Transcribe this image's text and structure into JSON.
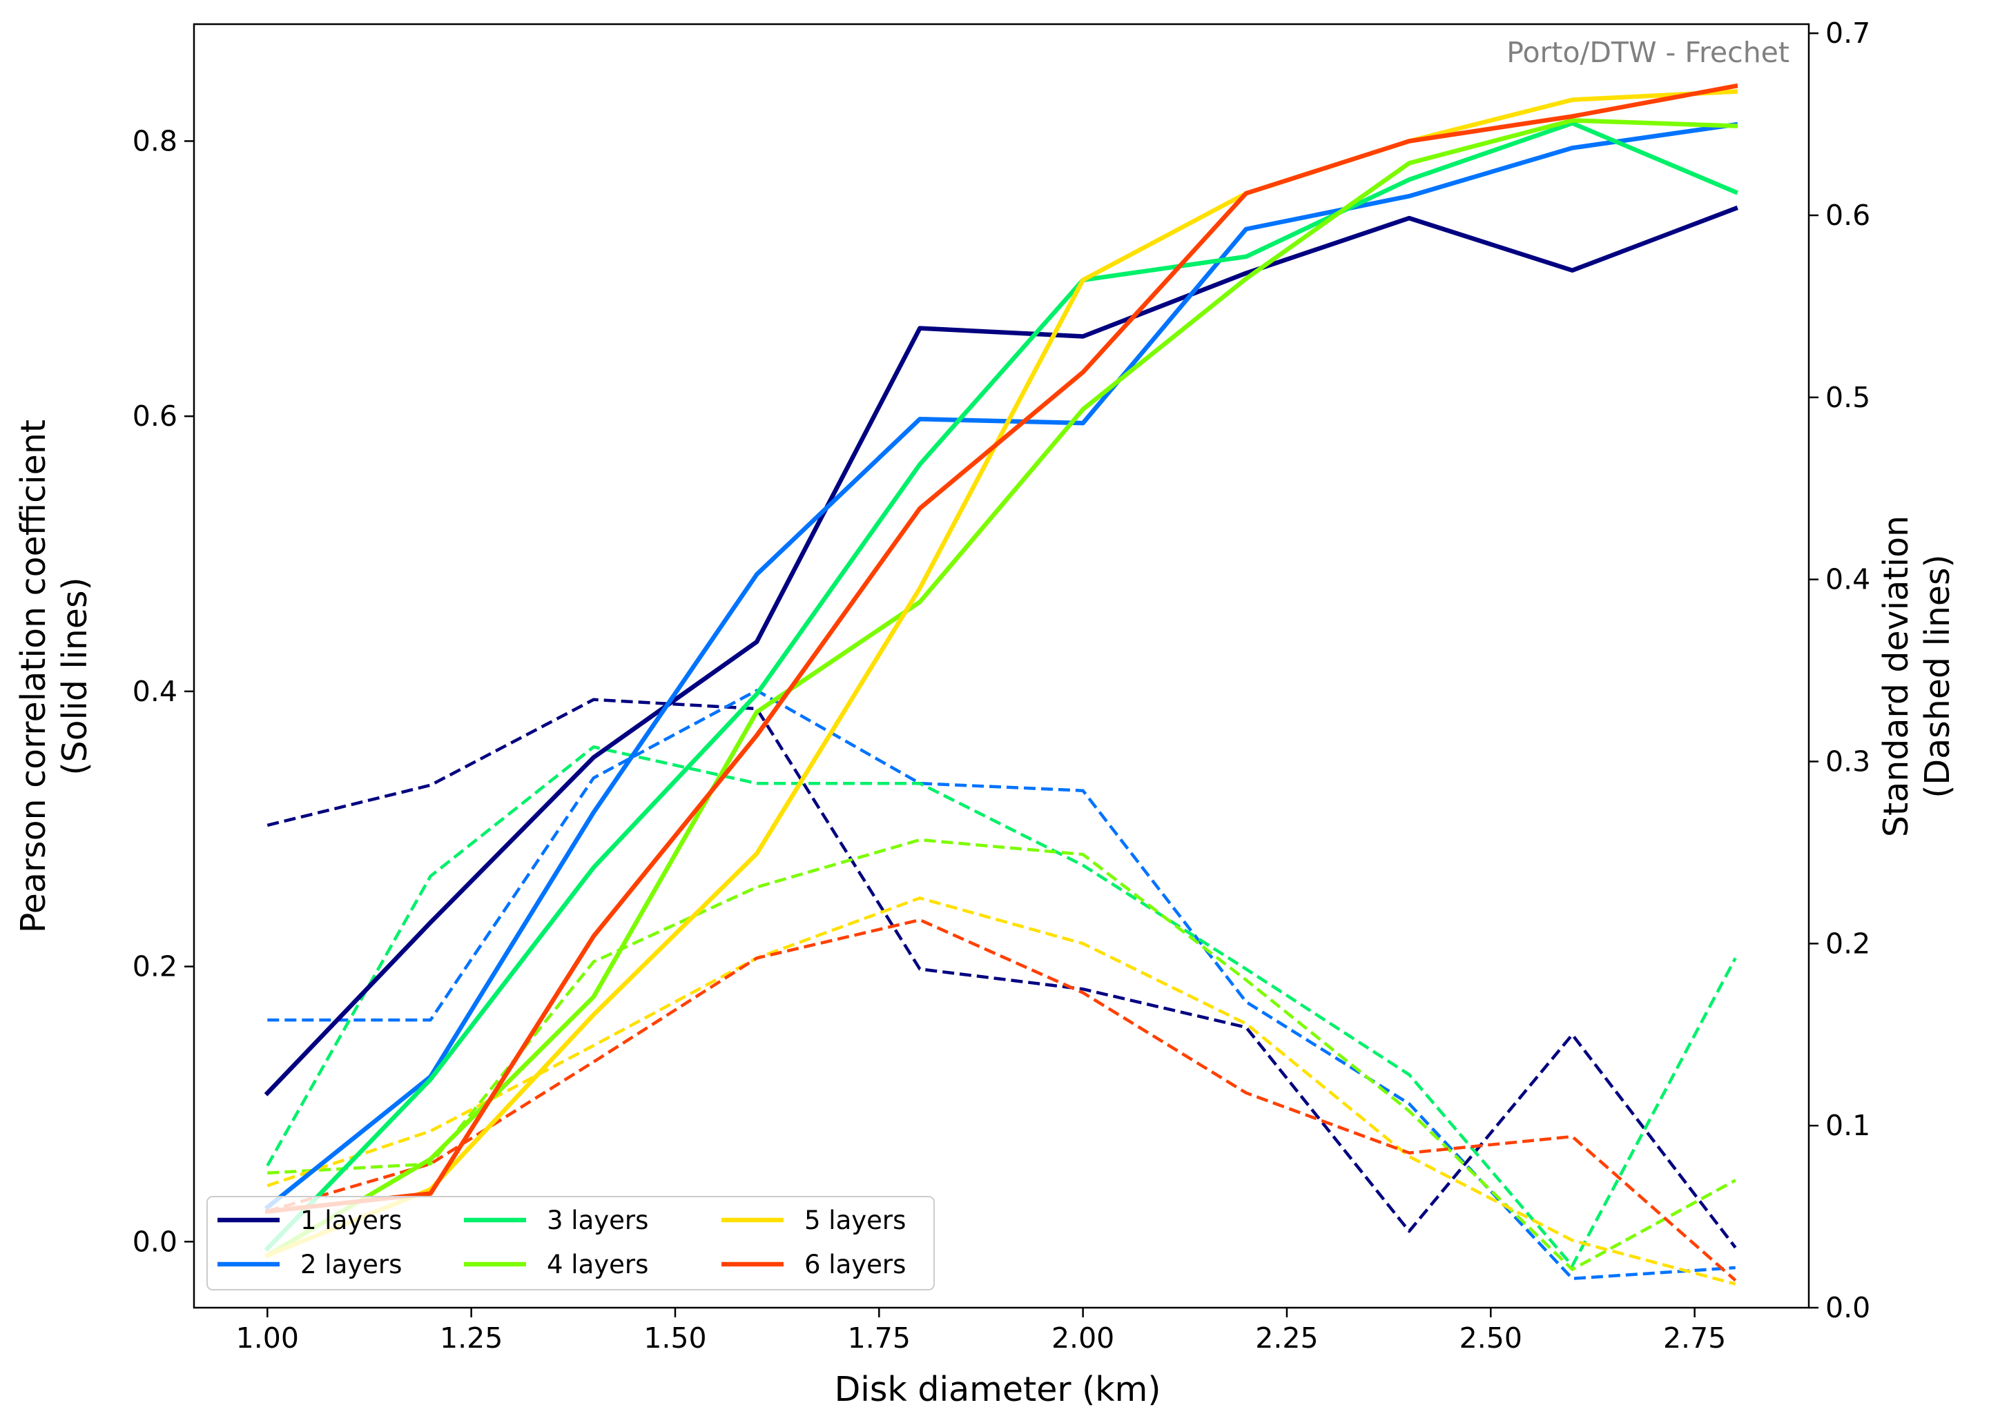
{
  "chart_data": {
    "type": "line",
    "annotation": "Porto/DTW - Frechet",
    "xlabel": "Disk diameter (km)",
    "ylabel_left": [
      "Pearson correlation coefficient",
      "(Solid lines)"
    ],
    "ylabel_right": [
      "Standard deviation",
      "(Dashed lines)"
    ],
    "xlim": [
      0.91,
      2.89
    ],
    "ylim_left": [
      -0.048,
      0.885
    ],
    "ylim_right": [
      0.0,
      0.705
    ],
    "x_ticks": [
      1.0,
      1.25,
      1.5,
      1.75,
      2.0,
      2.25,
      2.5,
      2.75
    ],
    "x_tick_labels": [
      "1.00",
      "1.25",
      "1.50",
      "1.75",
      "2.00",
      "2.25",
      "2.50",
      "2.75"
    ],
    "y_left_ticks": [
      0.0,
      0.2,
      0.4,
      0.6,
      0.8
    ],
    "y_left_tick_labels": [
      "0.0",
      "0.2",
      "0.4",
      "0.6",
      "0.8"
    ],
    "y_right_ticks": [
      0.0,
      0.1,
      0.2,
      0.3,
      0.4,
      0.5,
      0.6,
      0.7
    ],
    "y_right_tick_labels": [
      "0.0",
      "0.1",
      "0.2",
      "0.3",
      "0.4",
      "0.5",
      "0.6",
      "0.7"
    ],
    "grid": false,
    "legend_position": "lower-left",
    "x": [
      1.0,
      1.2,
      1.4,
      1.6,
      1.8,
      2.0,
      2.2,
      2.4,
      2.6,
      2.8
    ],
    "series": [
      {
        "name": "1 layers",
        "color": "#000080",
        "pearson": [
          0.108,
          0.232,
          0.352,
          0.436,
          0.664,
          0.658,
          0.704,
          0.744,
          0.706,
          0.751
        ],
        "std": [
          0.265,
          0.287,
          0.334,
          0.329,
          0.186,
          0.175,
          0.154,
          0.042,
          0.15,
          0.033
        ]
      },
      {
        "name": "2 layers",
        "color": "#0073ff",
        "pearson": [
          0.025,
          0.12,
          0.312,
          0.485,
          0.598,
          0.595,
          0.736,
          0.76,
          0.795,
          0.812
        ],
        "std": [
          0.158,
          0.158,
          0.291,
          0.339,
          0.288,
          0.284,
          0.168,
          0.112,
          0.016,
          0.022
        ]
      },
      {
        "name": "3 layers",
        "color": "#00f06a",
        "pearson": [
          -0.005,
          0.118,
          0.272,
          0.398,
          0.565,
          0.699,
          0.716,
          0.772,
          0.813,
          0.763
        ],
        "std": [
          0.078,
          0.237,
          0.308,
          0.288,
          0.288,
          0.243,
          0.186,
          0.128,
          0.023,
          0.192
        ]
      },
      {
        "name": "4 layers",
        "color": "#7cfc00",
        "pearson": [
          -0.01,
          0.06,
          0.178,
          0.385,
          0.465,
          0.605,
          0.7,
          0.784,
          0.815,
          0.811
        ],
        "std": [
          0.074,
          0.079,
          0.19,
          0.231,
          0.257,
          0.249,
          0.18,
          0.108,
          0.021,
          0.07
        ]
      },
      {
        "name": "5 layers",
        "color": "#ffe000",
        "pearson": [
          -0.01,
          0.038,
          0.165,
          0.282,
          0.475,
          0.699,
          0.762,
          0.8,
          0.83,
          0.836
        ],
        "std": [
          0.067,
          0.097,
          0.144,
          0.192,
          0.225,
          0.2,
          0.156,
          0.083,
          0.037,
          0.013
        ]
      },
      {
        "name": "6 layers",
        "color": "#ff4000",
        "pearson": [
          0.022,
          0.035,
          0.222,
          0.368,
          0.533,
          0.632,
          0.762,
          0.8,
          0.818,
          0.84
        ],
        "std": [
          0.053,
          0.079,
          0.135,
          0.192,
          0.213,
          0.173,
          0.118,
          0.085,
          0.094,
          0.015
        ]
      }
    ]
  }
}
